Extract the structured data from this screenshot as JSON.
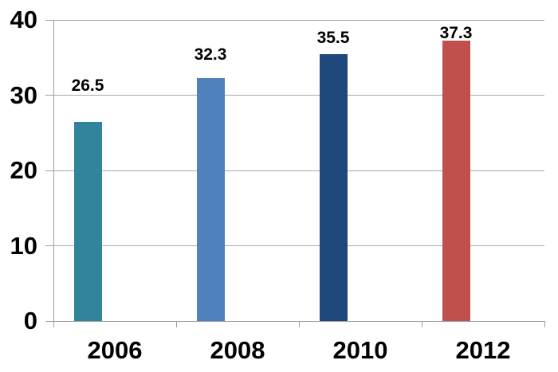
{
  "chart_data": {
    "type": "bar",
    "title": "",
    "xlabel": "",
    "ylabel": "",
    "categories": [
      "2006",
      "2008",
      "2010",
      "2012"
    ],
    "values": [
      26.5,
      32.3,
      35.5,
      37.3
    ],
    "data_labels": [
      "26.5",
      "32.3",
      "35.5",
      "37.3"
    ],
    "bar_colors": [
      "#31849B",
      "#4F81BD",
      "#1F497D",
      "#C0504D"
    ],
    "ylim": [
      0,
      40
    ],
    "yticks": [
      0,
      10,
      20,
      30,
      40
    ],
    "grid": true,
    "legend": false,
    "label_color": "#000000",
    "axis_color": "#9E9E9E",
    "gridline_color": "#A9A9A9",
    "background_color": "#FFFFFF"
  }
}
